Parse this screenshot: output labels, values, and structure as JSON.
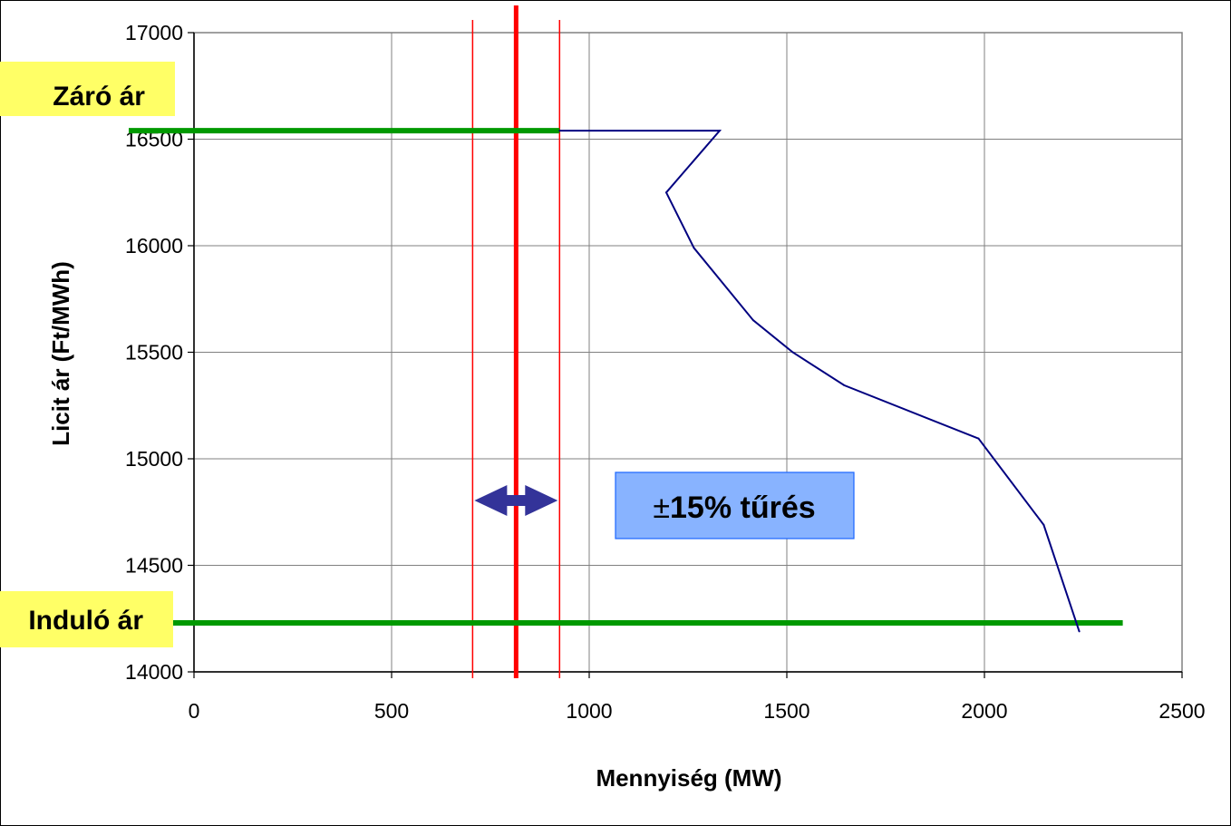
{
  "chart_data": {
    "type": "line",
    "xlabel": "Mennyiség (MW)",
    "ylabel": "Licit ár (Ft/MWh)",
    "xlim": [
      0,
      2500
    ],
    "ylim": [
      14000,
      17000
    ],
    "xticks": [
      0,
      500,
      1000,
      1500,
      2000,
      2500
    ],
    "yticks": [
      14000,
      14500,
      15000,
      15500,
      16000,
      16500,
      17000
    ],
    "grid": true,
    "series": [
      {
        "color": "#000080",
        "points": [
          {
            "x": 925,
            "y": 16540
          },
          {
            "x": 1330,
            "y": 16540
          },
          {
            "x": 1195,
            "y": 16250
          },
          {
            "x": 1265,
            "y": 15990
          },
          {
            "x": 1415,
            "y": 15650
          },
          {
            "x": 1515,
            "y": 15500
          },
          {
            "x": 1645,
            "y": 15345
          },
          {
            "x": 1985,
            "y": 15095
          },
          {
            "x": 2150,
            "y": 14690
          },
          {
            "x": 2240,
            "y": 14190
          }
        ]
      }
    ],
    "price_lines": [
      {
        "label": "Záró ár",
        "y": 16540,
        "x_end": 925,
        "color": "#009900"
      },
      {
        "label": "Induló ár",
        "y": 14230,
        "x_end": 2350,
        "color": "#009900"
      }
    ],
    "target_line": {
      "x": 815,
      "color": "#ff0000"
    },
    "tolerance_lines": [
      {
        "x": 705
      },
      {
        "x": 925
      }
    ],
    "tolerance_label": {
      "symbol": "±",
      "text": "15% tűrés"
    },
    "colors": {
      "label_bg": "#ffff66",
      "tolerance_box_bg": "#88b3ff",
      "tolerance_box_border": "#1a66ff",
      "arrow": "#333399",
      "grid": "#808080",
      "plot_border": "#808080"
    }
  }
}
